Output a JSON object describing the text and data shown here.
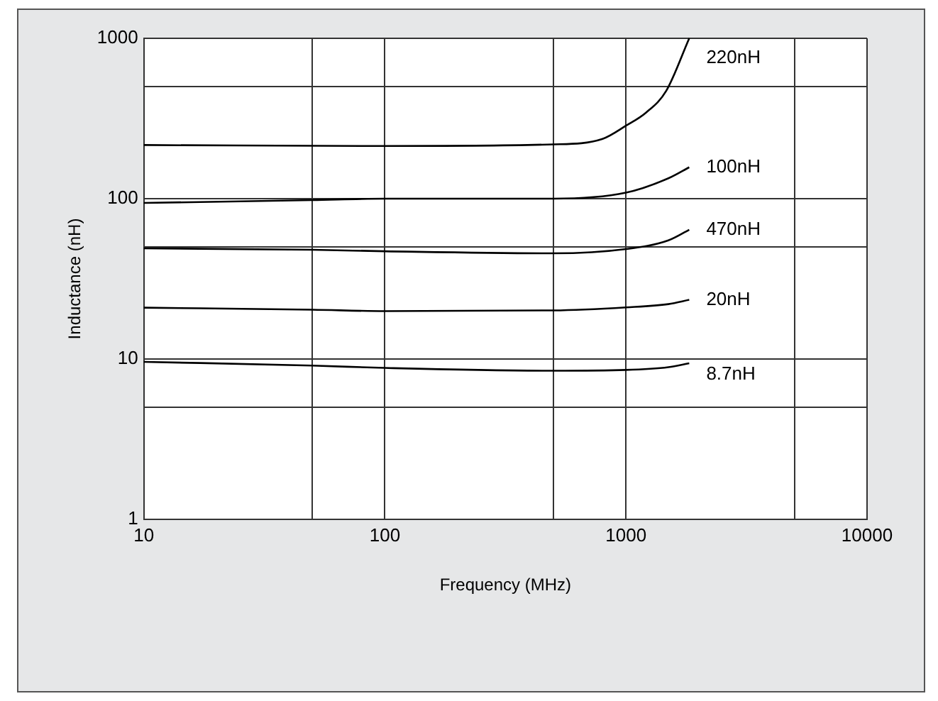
{
  "chart_data": {
    "type": "line",
    "xlabel": "Frequency (MHz)",
    "ylabel": "Inductance (nH)",
    "log": "xy",
    "grid": true,
    "legend": false,
    "marker": "none",
    "line_style": "solid",
    "xlim": [
      10,
      10000
    ],
    "ylim": [
      1,
      1000
    ],
    "xticks": [
      10,
      {
        "value": 50,
        "label": null
      },
      100,
      {
        "value": 500,
        "label": null
      },
      1000,
      {
        "value": 5000,
        "label": null
      },
      10000
    ],
    "yticks": [
      1,
      {
        "value": 5,
        "label": null
      },
      10,
      {
        "value": 50,
        "label": null
      },
      100,
      {
        "value": 500,
        "label": null
      },
      1000
    ],
    "x": [
      10,
      50,
      100,
      500,
      1000,
      1500,
      1830
    ],
    "series": [
      {
        "name": "220nH",
        "color": "#000000",
        "x": [
          10,
          100,
          500,
          800,
          1000,
          1211,
          1470,
          1830
        ],
        "values": [
          216,
          213,
          218,
          236,
          285,
          344,
          471,
          1000
        ]
      },
      {
        "name": "100nH",
        "color": "#000000",
        "values": [
          94,
          98,
          100,
          100,
          109,
          134,
          157
        ]
      },
      {
        "name": "470nH",
        "color": "#000000",
        "values": [
          49,
          48,
          47,
          45.6,
          48.5,
          55,
          64
        ]
      },
      {
        "name": "20nH",
        "color": "#000000",
        "values": [
          20.9,
          20.3,
          19.9,
          20.1,
          21,
          22,
          23.4
        ]
      },
      {
        "name": "8.7nH",
        "color": "#000000",
        "values": [
          9.6,
          9.1,
          8.8,
          8.45,
          8.55,
          8.9,
          9.4
        ]
      }
    ]
  }
}
